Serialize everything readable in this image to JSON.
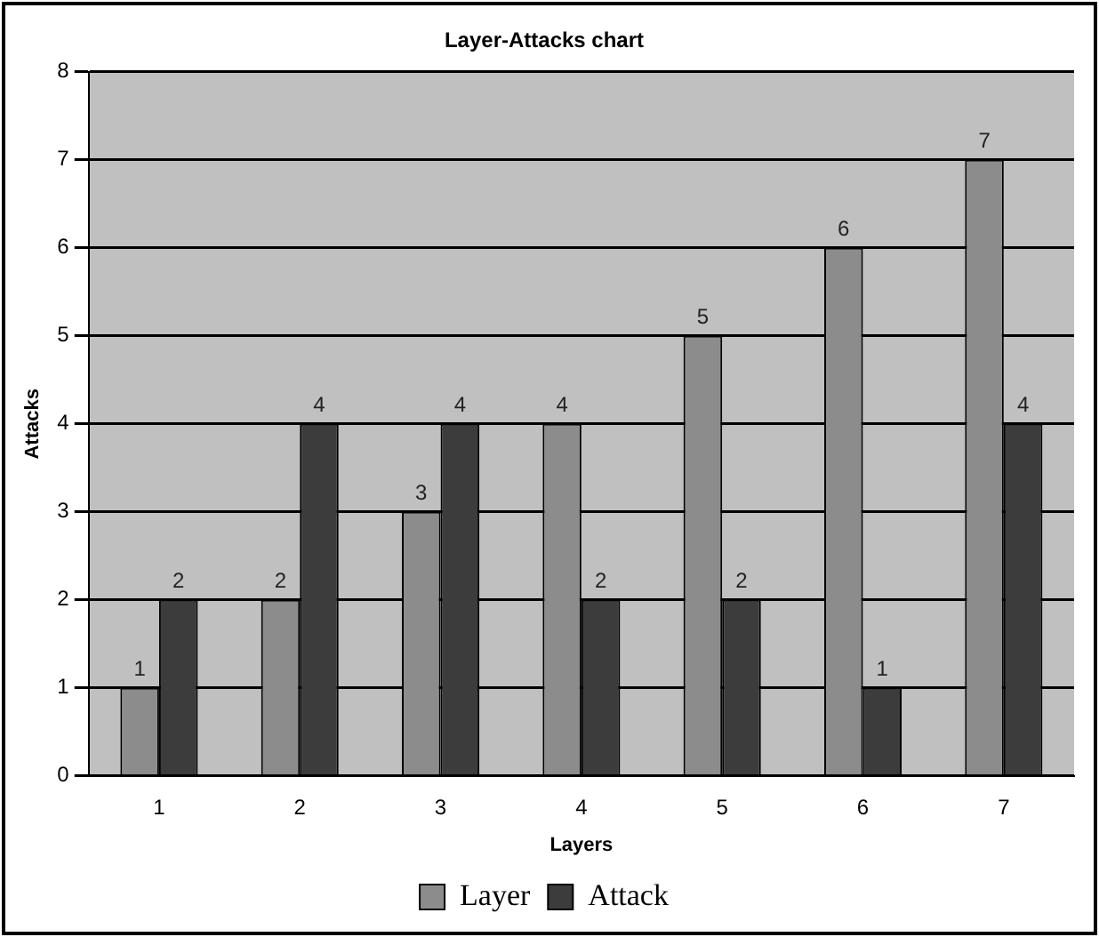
{
  "chart_data": {
    "type": "bar",
    "title": "Layer-Attacks chart",
    "xlabel": "Layers",
    "ylabel": "Attacks",
    "categories": [
      "1",
      "2",
      "3",
      "4",
      "5",
      "6",
      "7"
    ],
    "series": [
      {
        "name": "Layer",
        "color": "#8c8c8c",
        "values": [
          1,
          2,
          3,
          4,
          5,
          6,
          7
        ]
      },
      {
        "name": "Attack",
        "color": "#3c3c3c",
        "values": [
          2,
          4,
          4,
          2,
          2,
          1,
          4
        ]
      }
    ],
    "ylim": [
      0,
      8
    ],
    "yticks": [
      0,
      1,
      2,
      3,
      4,
      5,
      6,
      7,
      8
    ],
    "grid": "y",
    "legend": "bottom",
    "data_labels": true
  }
}
